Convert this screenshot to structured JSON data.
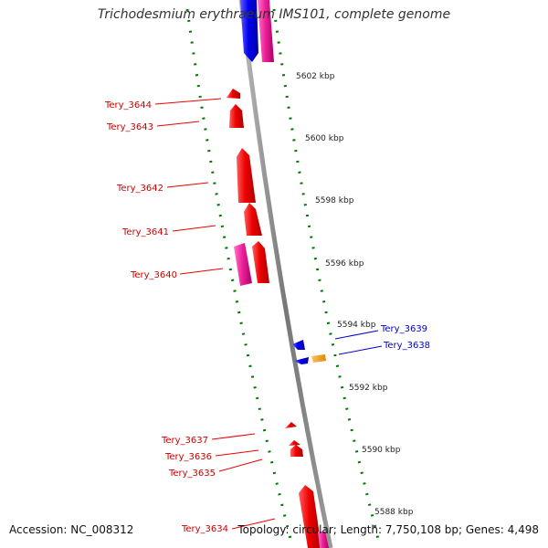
{
  "title": "Trichodesmium erythraeum IMS101, complete genome",
  "footer": {
    "accession": "Accession: NC_008312",
    "topology": "Topology: circular; Length: 7,750,108 bp; Genes: 4,498"
  },
  "colors": {
    "reverse_gene": "#ee0000",
    "forward_gene": "#0000ee",
    "pink_feature": "#ee2299",
    "orange_feature": "#ff9900",
    "tick": "#007700",
    "backbone": "#888888"
  },
  "scale_labels": [
    "5602 kbp",
    "5600 kbp",
    "5598 kbp",
    "5596 kbp",
    "5594 kbp",
    "5592 kbp",
    "5590 kbp",
    "5588 kbp"
  ],
  "genes": [
    {
      "name": "Tery_3644",
      "strand": "reverse"
    },
    {
      "name": "Tery_3643",
      "strand": "reverse"
    },
    {
      "name": "Tery_3642",
      "strand": "reverse"
    },
    {
      "name": "Tery_3641",
      "strand": "reverse"
    },
    {
      "name": "Tery_3640",
      "strand": "reverse"
    },
    {
      "name": "Tery_3639",
      "strand": "forward"
    },
    {
      "name": "Tery_3638",
      "strand": "forward"
    },
    {
      "name": "Tery_3637",
      "strand": "reverse"
    },
    {
      "name": "Tery_3636",
      "strand": "reverse"
    },
    {
      "name": "Tery_3635",
      "strand": "reverse"
    },
    {
      "name": "Tery_3634",
      "strand": "reverse"
    }
  ]
}
